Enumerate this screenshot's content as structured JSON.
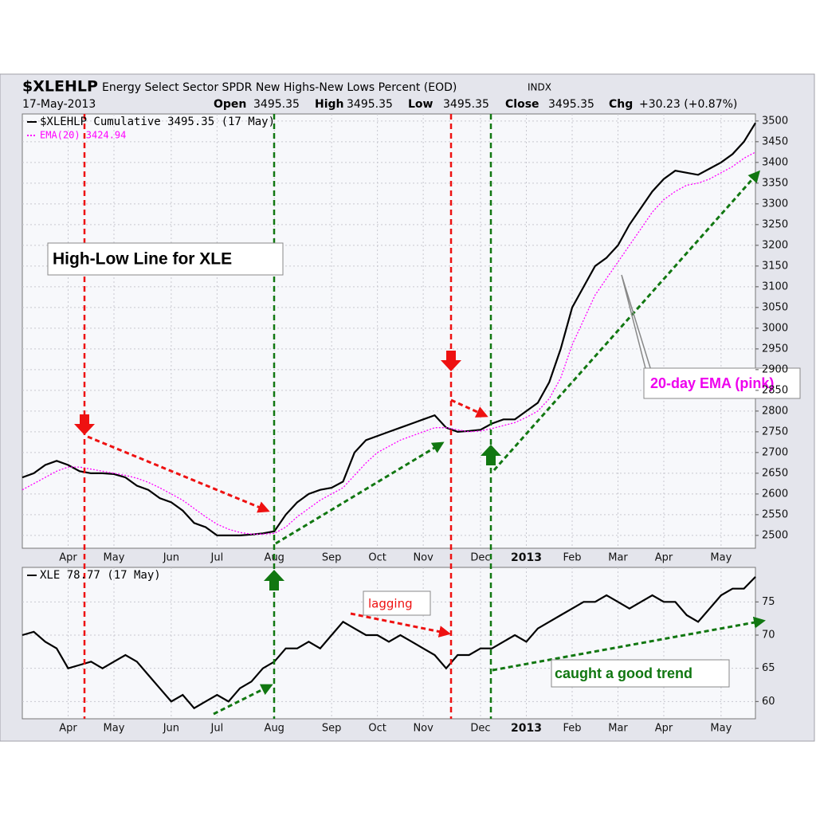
{
  "header": {
    "symbol": "$XLEHLP",
    "title": "Energy Select Sector SPDR New Highs-New Lows Percent (EOD)",
    "exchange": "INDX",
    "date": "17-May-2013",
    "open_label": "Open",
    "open": "3495.35",
    "high_label": "High",
    "high": "3495.35",
    "low_label": "Low",
    "low": "3495.35",
    "close_label": "Close",
    "close": "3495.35",
    "chg_label": "Chg",
    "chg": "+30.23 (+0.87%)"
  },
  "chart_data": [
    {
      "type": "line",
      "categories": [
        null,
        null,
        null,
        null,
        "Apr",
        null,
        null,
        null,
        "May",
        null,
        null,
        null,
        null,
        "Jun",
        null,
        null,
        null,
        "Jul",
        null,
        null,
        null,
        null,
        "Aug",
        null,
        null,
        null,
        null,
        "Sep",
        null,
        null,
        null,
        "Oct",
        null,
        null,
        null,
        "Nov",
        null,
        null,
        null,
        null,
        "Dec",
        null,
        null,
        null,
        "2013",
        null,
        null,
        null,
        "Feb",
        null,
        null,
        null,
        "Mar",
        null,
        null,
        null,
        "Apr",
        null,
        null,
        null,
        null,
        "May",
        null,
        null,
        null
      ],
      "series": [
        {
          "name": "$XLEHLP Cumulative 3495.35 (17 May)",
          "color": "#000000",
          "values": [
            2640,
            2650,
            2670,
            2680,
            2670,
            2655,
            2650,
            2650,
            2648,
            2640,
            2620,
            2610,
            2590,
            2580,
            2560,
            2530,
            2520,
            2500,
            2500,
            2500,
            2502,
            2505,
            2510,
            2550,
            2580,
            2600,
            2610,
            2615,
            2630,
            2700,
            2730,
            2740,
            2750,
            2760,
            2770,
            2780,
            2790,
            2760,
            2750,
            2752,
            2755,
            2770,
            2780,
            2780,
            2800,
            2820,
            2870,
            2950,
            3050,
            3100,
            3150,
            3170,
            3200,
            3250,
            3290,
            3330,
            3360,
            3380,
            3375,
            3370,
            3385,
            3400,
            3420,
            3450,
            3495.35
          ]
        },
        {
          "name": "EMA(20) 3424.94",
          "color": "#ff00ff",
          "dotted": true,
          "values": [
            2610,
            2625,
            2640,
            2655,
            2665,
            2665,
            2660,
            2655,
            2650,
            2645,
            2638,
            2628,
            2615,
            2600,
            2585,
            2565,
            2545,
            2527,
            2515,
            2507,
            2503,
            2503,
            2505,
            2520,
            2545,
            2565,
            2585,
            2600,
            2615,
            2645,
            2675,
            2700,
            2715,
            2730,
            2740,
            2750,
            2760,
            2760,
            2755,
            2750,
            2752,
            2758,
            2765,
            2772,
            2785,
            2800,
            2830,
            2880,
            2960,
            3020,
            3080,
            3120,
            3160,
            3200,
            3240,
            3280,
            3310,
            3330,
            3345,
            3350,
            3360,
            3375,
            3390,
            3410,
            3424.94
          ]
        }
      ],
      "ylim": [
        2469,
        3517
      ],
      "yticks": [
        2500,
        2550,
        2600,
        2650,
        2700,
        2750,
        2800,
        2850,
        2900,
        2950,
        3000,
        3050,
        3100,
        3150,
        3200,
        3250,
        3300,
        3350,
        3400,
        3450,
        3500
      ],
      "grid": true,
      "annotations": [
        "High-Low Line for XLE",
        "20-day EMA (pink)"
      ]
    },
    {
      "type": "line",
      "categories": [
        null,
        null,
        null,
        null,
        "Apr",
        null,
        null,
        null,
        "May",
        null,
        null,
        null,
        null,
        "Jun",
        null,
        null,
        null,
        "Jul",
        null,
        null,
        null,
        null,
        "Aug",
        null,
        null,
        null,
        null,
        "Sep",
        null,
        null,
        null,
        "Oct",
        null,
        null,
        null,
        "Nov",
        null,
        null,
        null,
        null,
        "Dec",
        null,
        null,
        null,
        "2013",
        null,
        null,
        null,
        "Feb",
        null,
        null,
        null,
        "Mar",
        null,
        null,
        null,
        "Apr",
        null,
        null,
        null,
        null,
        "May",
        null,
        null,
        null
      ],
      "series": [
        {
          "name": "XLE 78.77 (17 May)",
          "color": "#000000",
          "values": [
            70,
            70.5,
            69,
            68,
            65,
            65.5,
            66,
            65,
            66,
            67,
            66,
            64,
            62,
            60,
            61,
            59,
            60,
            61,
            60,
            62,
            63,
            65,
            66,
            68,
            68,
            69,
            68,
            70,
            72,
            71,
            70,
            70,
            69,
            70,
            69,
            68,
            67,
            65,
            67,
            67,
            68,
            68,
            69,
            70,
            69,
            71,
            72,
            73,
            74,
            75,
            75,
            76,
            75,
            74,
            75,
            76,
            75,
            75,
            73,
            72,
            74,
            76,
            77,
            77,
            78.77
          ]
        }
      ],
      "ylim": [
        57.4,
        80.2
      ],
      "yticks": [
        60,
        65,
        70,
        75
      ],
      "grid": true,
      "annotations": [
        "lagging",
        "caught a good trend"
      ]
    }
  ]
}
